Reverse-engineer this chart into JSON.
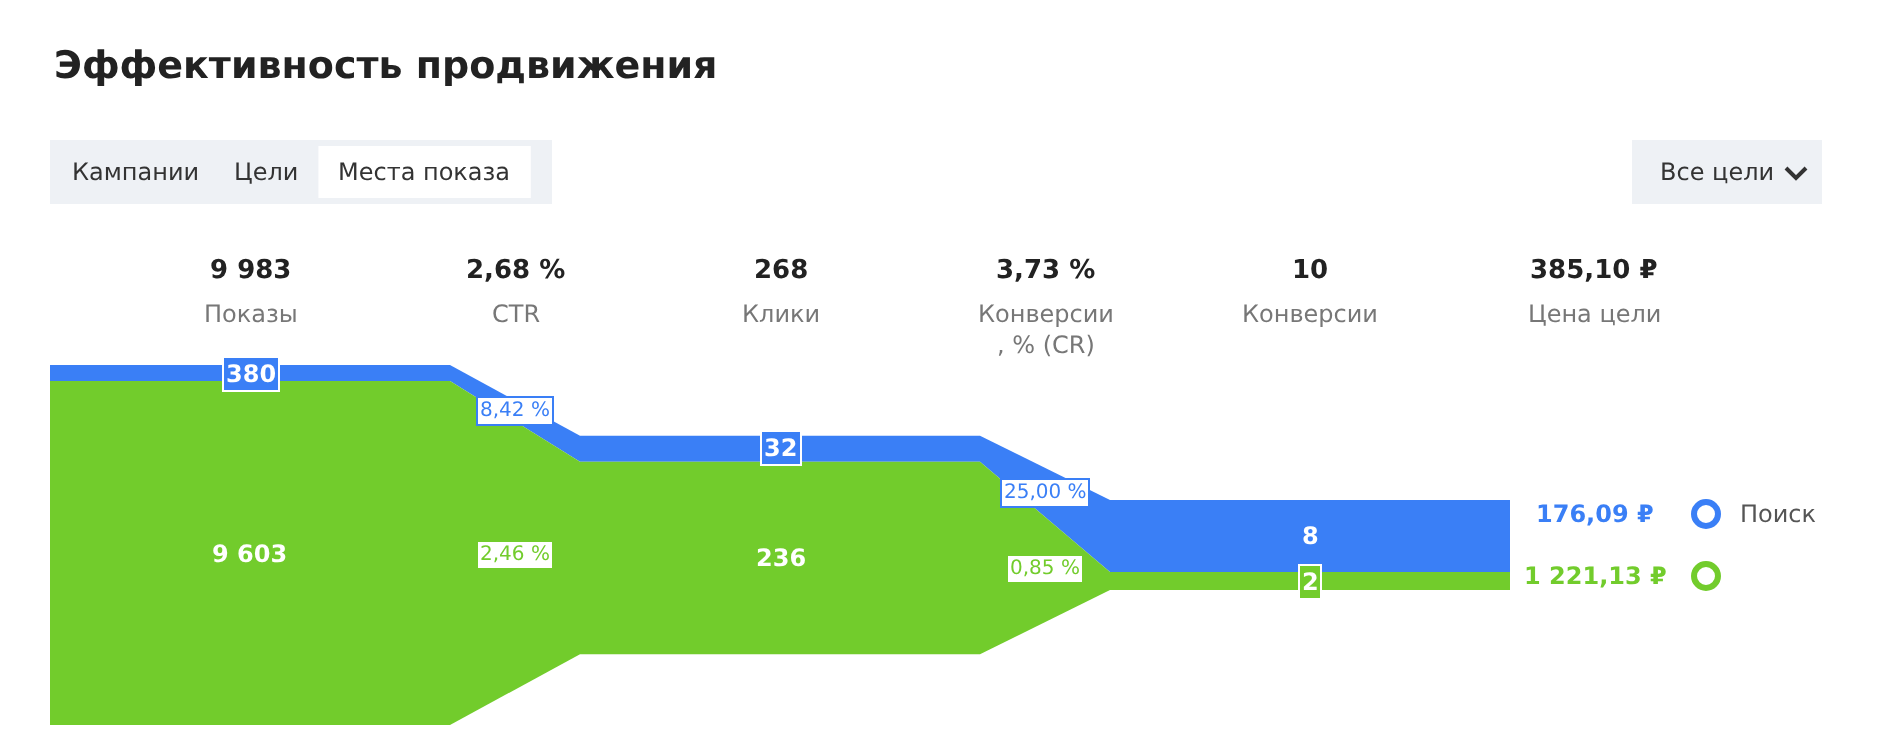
{
  "chart_data": {
    "type": "other",
    "title": "Эффективность продвижения",
    "annotations": [
      "Кампании",
      "Цели",
      "Места показа",
      "Все цели"
    ],
    "categories": [
      "Показы",
      "CTR",
      "Клики",
      "Конверсии\n, % (CR)",
      "Конверсии",
      "Цена цели"
    ],
    "values": [
      9983,
      2.68,
      268,
      3.73,
      10,
      385.1
    ],
    "value_labels": [
      "9 983",
      "2,68 %",
      "268",
      "3,73 %",
      "10",
      "385,10 ₽"
    ],
    "series": [
      {
        "name": "Поиск",
        "color": "#3a7ff6",
        "values": [
          380,
          8.42,
          32,
          25.0,
          8,
          176.09
        ],
        "value_labels": [
          "380",
          "8,42 %",
          "32",
          "25,00 %",
          "8",
          "176,09 ₽"
        ]
      },
      {
        "color": "#72cc2c",
        "values": [
          9603,
          2.46,
          236,
          0.85,
          2,
          1221.13
        ],
        "value_labels": [
          "9 603",
          "2,46 %",
          "236",
          "0,85 %",
          "2",
          "1 221,13 ₽"
        ]
      }
    ]
  }
}
